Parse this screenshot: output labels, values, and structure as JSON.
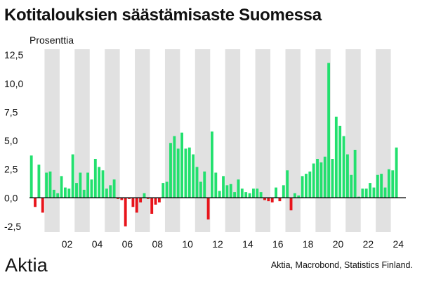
{
  "title": "Kotitalouksien säästämisaste Suomessa",
  "brand": "Aktia",
  "source": "Aktia, Macrobond, Statistics Finland.",
  "colors": {
    "positive": "#22e06e",
    "negative": "#e8141b",
    "band": "#e1e1e1",
    "text": "#111111"
  },
  "chart_data": {
    "type": "bar",
    "ylabel": "Prosenttia",
    "ylim": [
      -3.0,
      13.0
    ],
    "yticks": [
      -2.5,
      0.0,
      2.5,
      5.0,
      7.5,
      10.0,
      12.5
    ],
    "ytick_labels": [
      "-2,5",
      "0,0",
      "2,5",
      "5,0",
      "7,5",
      "10,0",
      "12,5"
    ],
    "x_start": 2000,
    "x_end": 2025,
    "frequency": "quarterly",
    "xtick_years": [
      2002,
      2004,
      2006,
      2008,
      2010,
      2012,
      2014,
      2016,
      2018,
      2020,
      2022,
      2024
    ],
    "xtick_labels": [
      "02",
      "04",
      "06",
      "08",
      "10",
      "12",
      "14",
      "16",
      "18",
      "20",
      "22",
      "24"
    ],
    "shaded_years": [
      2001,
      2003,
      2005,
      2007,
      2009,
      2011,
      2013,
      2015,
      2017,
      2019,
      2021,
      2023
    ],
    "values": [
      3.7,
      -0.8,
      2.9,
      -1.3,
      2.2,
      2.3,
      0.7,
      0.4,
      1.9,
      0.9,
      0.8,
      3.8,
      1.3,
      2.2,
      0.7,
      2.2,
      1.6,
      3.4,
      2.7,
      2.4,
      0.8,
      1.1,
      1.6,
      -0.1,
      -0.2,
      -2.5,
      -0.1,
      -0.8,
      -1.3,
      -0.4,
      0.4,
      -0.1,
      -1.4,
      -0.6,
      -0.4,
      1.3,
      1.4,
      4.8,
      5.4,
      4.3,
      5.7,
      4.3,
      4.4,
      3.8,
      2.7,
      1.4,
      2.3,
      -1.9,
      5.8,
      2.2,
      0.6,
      1.9,
      1.1,
      1.2,
      0.5,
      1.6,
      0.8,
      0.5,
      0.4,
      0.8,
      0.8,
      0.5,
      -0.2,
      -0.3,
      -0.4,
      0.9,
      -0.3,
      1.1,
      2.4,
      -1.1,
      0.4,
      0.2,
      1.9,
      2.1,
      2.3,
      3.0,
      3.4,
      3.1,
      3.6,
      11.8,
      3.4,
      7.1,
      6.3,
      5.4,
      3.8,
      2.0,
      4.2,
      0.1,
      0.8,
      0.8,
      1.3,
      0.9,
      2.0,
      2.1,
      0.9,
      2.5,
      2.4,
      4.4
    ]
  }
}
